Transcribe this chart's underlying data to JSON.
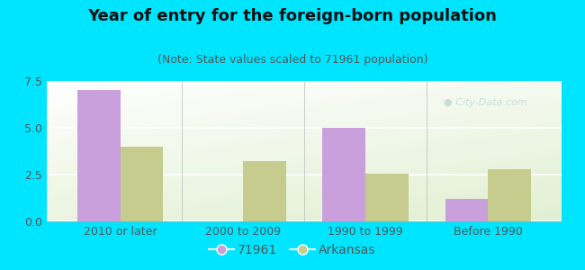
{
  "title": "Year of entry for the foreign-born population",
  "subtitle": "(Note: State values scaled to 71961 population)",
  "categories": [
    "2010 or later",
    "2000 to 2009",
    "1990 to 1999",
    "Before 1990"
  ],
  "values_71961": [
    7.0,
    0.0,
    5.0,
    1.2
  ],
  "values_arkansas": [
    4.0,
    3.2,
    2.55,
    2.8
  ],
  "bar_color_71961": "#c9a0dc",
  "bar_color_arkansas": "#c5cc8e",
  "bar_width": 0.35,
  "ylim": [
    0,
    7.5
  ],
  "yticks": [
    0,
    2.5,
    5,
    7.5
  ],
  "bg_color": "#00e5ff",
  "plot_bg_top_left": "#f0f8ee",
  "plot_bg_bottom": "#ddeedd",
  "legend_label_71961": "71961",
  "legend_label_arkansas": "Arkansas",
  "title_fontsize": 13,
  "subtitle_fontsize": 9,
  "tick_fontsize": 9,
  "legend_fontsize": 10,
  "title_color": "#111111",
  "subtitle_color": "#555555",
  "tick_color": "#555555"
}
